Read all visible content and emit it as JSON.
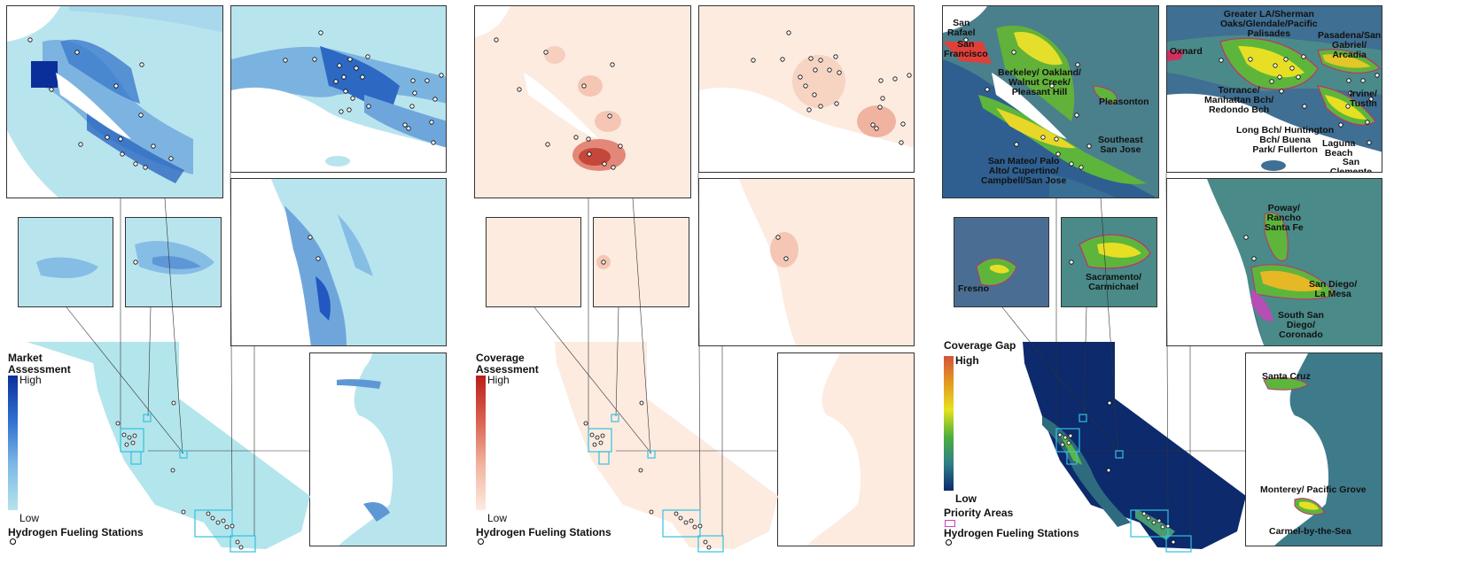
{
  "panels": [
    {
      "id": "market",
      "legend": {
        "title": "Market\nAssessment",
        "high": "High",
        "low": "Low",
        "stations": "Hydrogen Fueling Stations"
      },
      "colors": {
        "base": "#b3e5ec",
        "mid": "#6aa6e0",
        "dark": "#2258c0",
        "deep": "#0b2f9a"
      }
    },
    {
      "id": "coverage",
      "legend": {
        "title": "Coverage\nAssessment",
        "high": "High",
        "low": "Low",
        "stations": "Hydrogen Fueling Stations"
      },
      "colors": {
        "base": "#fdebe0",
        "mid": "#f3c0ac",
        "dark": "#df7468",
        "deep": "#b92018"
      }
    },
    {
      "id": "gap",
      "legend": {
        "title": "Coverage Gap",
        "high": "High",
        "low": "Low",
        "priority": "Priority Areas",
        "stations": "Hydrogen Fueling Stations"
      },
      "colors": {
        "base": "#0a2a6e",
        "teal": "#3d7a8a",
        "green": "#4caf3a",
        "yellow": "#e6e21e",
        "orange": "#e28b1c",
        "priority": "#d040c0"
      }
    }
  ],
  "place_labels": {
    "sf_bay": [
      "San\nRafael",
      "San\nFrancisco",
      "Berkeley/ Oakland/\nWalnut Creek/\nPleasant Hill",
      "Pleasonton",
      "Southeast\nSan Jose",
      "San Mateo/ Palo\nAlto/ Cupertino/\nCampbell/San Jose"
    ],
    "la": [
      "Greater LA/Sherman\nOaks/Glendale/Pacific\nPalisades",
      "Pasadena/San\nGabriel/\nArcadia",
      "Oxnard",
      "Torrance/\nManhattan Bch/\nRedondo Bch",
      "Irvine/\nTustin",
      "Long Bch/ Huntington\nBch/ Buena\nPark/ Fullerton",
      "Laguna\nBeach",
      "San Clemente"
    ],
    "fresno": "Fresno",
    "sacramento": "Sacramento/\nCarmichael",
    "san_diego": [
      "Poway/\nRancho\nSanta Fe",
      "San Diego/\nLa Mesa",
      "South San\nDiego/\nCoronado"
    ],
    "monterey": [
      "Santa Cruz",
      "Monterey/ Pacific Grove",
      "Carmel-by-the-Sea"
    ]
  }
}
